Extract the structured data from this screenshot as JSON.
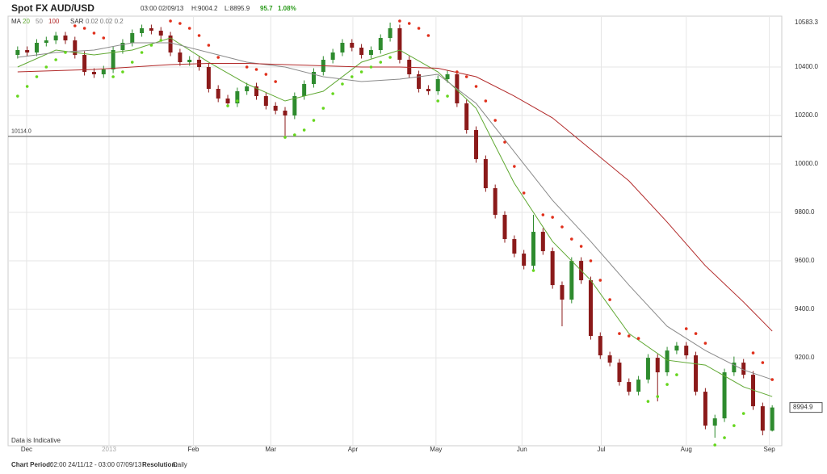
{
  "header": {
    "title": "Spot FX AUD/USD",
    "time": "03:00 02/09/13",
    "high": "H:9004.2",
    "low": "L:8895.9",
    "change": 95.7,
    "change_pct": "1.08%"
  },
  "footer": {
    "period_label": "Chart Period:",
    "period": "02:00 24/11/12 - 03:00 07/09/13",
    "resolution_label": "Resolution:",
    "resolution": "Daily"
  },
  "chart_data": {
    "type": "candlestick",
    "note": "Data is Indicative",
    "ma_label": "MA",
    "sar_label": "SAR",
    "sar_params": "0.02 0.02 0.2",
    "up_color": "#2e8b2e",
    "down_color": "#8b1a1a",
    "open": [
      10450,
      10470,
      10460,
      10500,
      10510,
      10530,
      10510,
      10450,
      10380,
      10370,
      10390,
      10470,
      10500,
      10540,
      10560,
      10550,
      10530,
      10460,
      10420,
      10430,
      10400,
      10310,
      10270,
      10250,
      10300,
      10320,
      10280,
      10240,
      10220,
      10200,
      10280,
      10330,
      10380,
      10430,
      10460,
      10500,
      10480,
      10450,
      10470,
      10520,
      10560,
      10430,
      10370,
      10310,
      10300,
      10350,
      10370,
      10250,
      10140,
      10020,
      9900,
      9790,
      9690,
      9630,
      9580,
      9720,
      9640,
      9500,
      9440,
      9600,
      9520,
      9290,
      9210,
      9180,
      9100,
      9060,
      9110,
      9200,
      9140,
      9230,
      9250,
      9210,
      9060,
      8920,
      8950,
      9140,
      9180,
      9130,
      9000,
      8899.2
    ],
    "high": [
      10485,
      10485,
      10515,
      10525,
      10545,
      10545,
      10525,
      10465,
      10395,
      10405,
      10485,
      10515,
      10555,
      10575,
      10575,
      10565,
      10545,
      10475,
      10445,
      10445,
      10415,
      10325,
      10285,
      10315,
      10335,
      10335,
      10295,
      10255,
      10235,
      10295,
      10345,
      10395,
      10445,
      10475,
      10515,
      10515,
      10495,
      10485,
      10535,
      10583.3,
      10575,
      10445,
      10385,
      10325,
      10365,
      10385,
      10385,
      10265,
      10155,
      10035,
      9915,
      9805,
      9705,
      9645,
      9790,
      9735,
      9655,
      9515,
      9615,
      9615,
      9535,
      9305,
      9225,
      9195,
      9115,
      9125,
      9215,
      9215,
      9245,
      9265,
      9265,
      9225,
      9075,
      8965,
      9155,
      9205,
      9195,
      9145,
      9015,
      9004.2
    ],
    "low": [
      10435,
      10445,
      10445,
      10485,
      10495,
      10495,
      10435,
      10365,
      10355,
      10355,
      10375,
      10455,
      10485,
      10525,
      10535,
      10515,
      10445,
      10405,
      10405,
      10385,
      10295,
      10255,
      10235,
      10235,
      10285,
      10265,
      10225,
      10205,
      10114,
      10185,
      10265,
      10315,
      10365,
      10415,
      10445,
      10465,
      10435,
      10435,
      10455,
      10505,
      10415,
      10355,
      10295,
      10285,
      10285,
      10335,
      10235,
      10125,
      10005,
      9885,
      9775,
      9675,
      9615,
      9565,
      9565,
      9625,
      9485,
      9330,
      9425,
      9505,
      9275,
      9195,
      9165,
      9085,
      9045,
      9045,
      9095,
      9020,
      9125,
      9215,
      9195,
      9045,
      8905,
      8870,
      8935,
      9125,
      9115,
      8985,
      8880,
      8895.9
    ],
    "close": [
      10470,
      10460,
      10500,
      10510,
      10530,
      10510,
      10450,
      10380,
      10370,
      10390,
      10470,
      10500,
      10540,
      10560,
      10550,
      10530,
      10460,
      10420,
      10430,
      10400,
      10310,
      10270,
      10250,
      10300,
      10320,
      10280,
      10240,
      10220,
      10200,
      10280,
      10330,
      10380,
      10430,
      10460,
      10500,
      10480,
      10450,
      10470,
      10520,
      10560,
      10430,
      10370,
      10310,
      10300,
      10350,
      10370,
      10250,
      10140,
      10020,
      9900,
      9790,
      9690,
      9630,
      9580,
      9720,
      9640,
      9500,
      9440,
      9600,
      9520,
      9290,
      9210,
      9180,
      9100,
      9060,
      9110,
      9200,
      9140,
      9230,
      9250,
      9210,
      9060,
      8920,
      8950,
      9140,
      9180,
      9130,
      9000,
      8899.2,
      8994.9
    ],
    "series": [
      {
        "name": "20",
        "color": "#5fa832",
        "x": [
          0,
          4,
          8,
          12,
          16,
          20,
          24,
          28,
          32,
          36,
          40,
          44,
          48,
          52,
          56,
          60,
          64,
          68,
          72,
          76,
          79
        ],
        "values": [
          10400,
          10470,
          10450,
          10470,
          10520,
          10420,
          10330,
          10260,
          10300,
          10420,
          10470,
          10380,
          10230,
          9920,
          9680,
          9520,
          9300,
          9190,
          9170,
          9080,
          9040
        ]
      },
      {
        "name": "50",
        "color": "#8a8a8a",
        "x": [
          0,
          4,
          8,
          12,
          16,
          20,
          24,
          28,
          32,
          36,
          40,
          44,
          48,
          52,
          56,
          60,
          64,
          68,
          72,
          76,
          79
        ],
        "values": [
          10440,
          10460,
          10470,
          10500,
          10500,
          10460,
          10420,
          10400,
          10360,
          10340,
          10350,
          10370,
          10250,
          10050,
          9850,
          9680,
          9500,
          9330,
          9230,
          9150,
          9110
        ]
      },
      {
        "name": "100",
        "color": "#b22a2a",
        "x": [
          0,
          4,
          8,
          12,
          16,
          20,
          24,
          28,
          32,
          36,
          40,
          44,
          48,
          52,
          56,
          60,
          64,
          68,
          72,
          76,
          79
        ],
        "values": [
          10380,
          10385,
          10390,
          10400,
          10410,
          10415,
          10415,
          10410,
          10405,
          10400,
          10400,
          10395,
          10360,
          10280,
          10190,
          10060,
          9930,
          9760,
          9580,
          9430,
          9310
        ]
      }
    ],
    "sar": {
      "up_color": "#66d61e",
      "down_color": "#e0301c",
      "values": [
        10280,
        10320,
        10360,
        10400,
        10430,
        10460,
        10570,
        10560,
        10540,
        10520,
        10360,
        10380,
        10420,
        10460,
        10490,
        10510,
        10590,
        10580,
        10560,
        10530,
        10490,
        10440,
        10240,
        10260,
        10400,
        10390,
        10370,
        10340,
        10110,
        10120,
        10140,
        10180,
        10230,
        10290,
        10330,
        10360,
        10380,
        10400,
        10420,
        10440,
        10590,
        10580,
        10560,
        10530,
        10260,
        10280,
        10380,
        10360,
        10320,
        10260,
        10180,
        10090,
        9990,
        9880,
        9560,
        9790,
        9780,
        9740,
        9690,
        9660,
        9600,
        9520,
        9440,
        9300,
        9290,
        9280,
        9020,
        9040,
        9090,
        9130,
        9320,
        9300,
        9260,
        8840,
        8870,
        8920,
        8970,
        9220,
        9180,
        9110
      ]
    },
    "ref_line": {
      "value": 10114,
      "label": "10114.0"
    },
    "high_marker": 10583.3,
    "last_price": 8994.9,
    "xlim": [
      -1,
      80
    ],
    "ylim": [
      8837,
      10610
    ],
    "xticks": [
      {
        "value": 0.94,
        "label": "Dec"
      },
      {
        "value": 9.57,
        "label": "2013"
      },
      {
        "value": 18.4,
        "label": "Feb"
      },
      {
        "value": 26.5,
        "label": "Mar"
      },
      {
        "value": 35.1,
        "label": "Apr"
      },
      {
        "value": 43.8,
        "label": "May"
      },
      {
        "value": 52.8,
        "label": "Jun"
      },
      {
        "value": 61.1,
        "label": "Jul"
      },
      {
        "value": 70,
        "label": "Aug"
      },
      {
        "value": 78.7,
        "label": "Sep"
      }
    ],
    "yticks": [
      {
        "value": 10400,
        "label": "10400.0"
      },
      {
        "value": 10200,
        "label": "10200.0"
      },
      {
        "value": 10000,
        "label": "10000.0"
      },
      {
        "value": 9800,
        "label": "9800.0"
      },
      {
        "value": 9600,
        "label": "9600.0"
      },
      {
        "value": 9400,
        "label": "9400.0"
      },
      {
        "value": 9200,
        "label": "9200.0"
      }
    ],
    "grid": true
  }
}
